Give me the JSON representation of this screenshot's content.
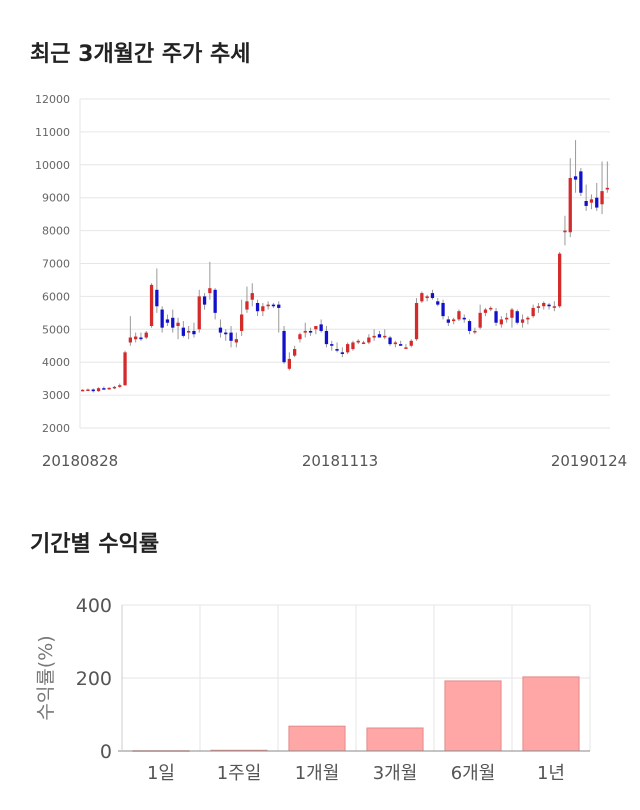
{
  "titles": {
    "price_trend": "최근 3개월간 주가 추세",
    "period_returns": "기간별 수익률"
  },
  "colors": {
    "up": "#d42a2a",
    "down": "#1111cc",
    "wick": "#999999",
    "bar": "#ffa6a6",
    "bar_border": "#e58a8a",
    "grid": "#e6e6e6"
  },
  "chart_data": [
    {
      "type": "candlestick",
      "title": "최근 3개월간 주가 추세",
      "ylim": [
        2000,
        12000
      ],
      "yticks": [
        2000,
        3000,
        4000,
        5000,
        6000,
        7000,
        8000,
        9000,
        10000,
        11000,
        12000
      ],
      "x_labels": [
        "20180828",
        "20181113",
        "20190124"
      ],
      "grid": true,
      "candles": [
        [
          3150,
          3180,
          3120,
          3160
        ],
        [
          3160,
          3200,
          3130,
          3170
        ],
        [
          3170,
          3200,
          3080,
          3120
        ],
        [
          3120,
          3240,
          3100,
          3210
        ],
        [
          3210,
          3260,
          3170,
          3200
        ],
        [
          3200,
          3240,
          3160,
          3220
        ],
        [
          3220,
          3280,
          3180,
          3250
        ],
        [
          3250,
          3350,
          3220,
          3300
        ],
        [
          3300,
          4350,
          3280,
          4300
        ],
        [
          4600,
          5400,
          4500,
          4750
        ],
        [
          4700,
          4900,
          4600,
          4780
        ],
        [
          4750,
          4900,
          4650,
          4700
        ],
        [
          4750,
          4950,
          4700,
          4900
        ],
        [
          5100,
          6400,
          5050,
          6350
        ],
        [
          6200,
          6850,
          5500,
          5700
        ],
        [
          5600,
          5700,
          4900,
          5050
        ],
        [
          5300,
          5450,
          5100,
          5200
        ],
        [
          5350,
          5600,
          4900,
          5050
        ],
        [
          5100,
          5350,
          4700,
          5200
        ],
        [
          5050,
          5250,
          4750,
          4800
        ],
        [
          4900,
          5100,
          4700,
          4950
        ],
        [
          4950,
          5200,
          4750,
          4850
        ],
        [
          5000,
          6200,
          4900,
          6000
        ],
        [
          6000,
          6100,
          5600,
          5750
        ],
        [
          6100,
          7050,
          5900,
          6250
        ],
        [
          6200,
          6250,
          5300,
          5500
        ],
        [
          5050,
          5300,
          4750,
          4900
        ],
        [
          4900,
          5000,
          4650,
          4850
        ],
        [
          4900,
          5100,
          4450,
          4650
        ],
        [
          4600,
          4900,
          4450,
          4700
        ],
        [
          4950,
          5900,
          4800,
          5450
        ],
        [
          5600,
          6300,
          5500,
          5850
        ],
        [
          5900,
          6400,
          5700,
          6100
        ],
        [
          5800,
          5900,
          5400,
          5550
        ],
        [
          5550,
          5800,
          5400,
          5700
        ],
        [
          5700,
          5850,
          5600,
          5750
        ],
        [
          5750,
          5800,
          5650,
          5700
        ],
        [
          5750,
          5850,
          4900,
          5650
        ],
        [
          4950,
          5100,
          3950,
          4000
        ],
        [
          3800,
          4300,
          3750,
          4100
        ],
        [
          4200,
          4500,
          4150,
          4400
        ],
        [
          4700,
          4900,
          4600,
          4850
        ],
        [
          4900,
          5200,
          4750,
          4950
        ],
        [
          4950,
          5050,
          4800,
          4900
        ],
        [
          5000,
          5100,
          4850,
          5100
        ],
        [
          5150,
          5300,
          4900,
          4950
        ],
        [
          4950,
          5100,
          4450,
          4550
        ],
        [
          4550,
          4650,
          4350,
          4500
        ],
        [
          4400,
          4600,
          4300,
          4350
        ],
        [
          4300,
          4450,
          4150,
          4250
        ],
        [
          4300,
          4600,
          4250,
          4550
        ],
        [
          4400,
          4650,
          4350,
          4600
        ],
        [
          4600,
          4700,
          4550,
          4650
        ],
        [
          4600,
          4650,
          4550,
          4600
        ],
        [
          4600,
          4850,
          4550,
          4750
        ],
        [
          4750,
          5000,
          4650,
          4800
        ],
        [
          4850,
          4950,
          4750,
          4750
        ],
        [
          4800,
          5000,
          4700,
          4800
        ],
        [
          4750,
          4800,
          4500,
          4550
        ],
        [
          4550,
          4650,
          4450,
          4600
        ],
        [
          4550,
          4650,
          4500,
          4500
        ],
        [
          4450,
          4550,
          4400,
          4450
        ],
        [
          4500,
          4700,
          4450,
          4650
        ],
        [
          4700,
          5950,
          4650,
          5800
        ],
        [
          5850,
          6150,
          5800,
          6100
        ],
        [
          5950,
          6050,
          5850,
          6000
        ],
        [
          6100,
          6200,
          5900,
          5950
        ],
        [
          5850,
          5950,
          5700,
          5750
        ],
        [
          5800,
          5900,
          5300,
          5400
        ],
        [
          5300,
          5400,
          5100,
          5200
        ],
        [
          5250,
          5350,
          5150,
          5300
        ],
        [
          5300,
          5600,
          5250,
          5550
        ],
        [
          5350,
          5450,
          5200,
          5300
        ],
        [
          5250,
          5300,
          4850,
          4950
        ],
        [
          4950,
          5050,
          4850,
          4950
        ],
        [
          5050,
          5750,
          5000,
          5500
        ],
        [
          5500,
          5650,
          5400,
          5600
        ],
        [
          5650,
          5700,
          5550,
          5650
        ],
        [
          5550,
          5650,
          5100,
          5200
        ],
        [
          5150,
          5400,
          5050,
          5300
        ],
        [
          5300,
          5500,
          5200,
          5350
        ],
        [
          5350,
          5650,
          5050,
          5600
        ],
        [
          5550,
          5600,
          5150,
          5200
        ],
        [
          5200,
          5450,
          5050,
          5300
        ],
        [
          5300,
          5400,
          5150,
          5350
        ],
        [
          5400,
          5750,
          5350,
          5650
        ],
        [
          5650,
          5800,
          5500,
          5700
        ],
        [
          5700,
          5850,
          5600,
          5800
        ],
        [
          5750,
          5800,
          5600,
          5700
        ],
        [
          5700,
          5850,
          5550,
          5700
        ],
        [
          5700,
          7350,
          5650,
          7300
        ],
        [
          7950,
          8450,
          7550,
          8000
        ],
        [
          7950,
          10200,
          7800,
          9600
        ],
        [
          9650,
          10750,
          9150,
          9550
        ],
        [
          9800,
          9900,
          9050,
          9150
        ],
        [
          8900,
          9400,
          8600,
          8750
        ],
        [
          8850,
          9100,
          8650,
          8950
        ],
        [
          9000,
          9450,
          8600,
          8700
        ],
        [
          8800,
          10100,
          8500,
          9200
        ],
        [
          9250,
          10100,
          9150,
          9300
        ]
      ]
    },
    {
      "type": "bar",
      "title": "기간별 수익률",
      "categories": [
        "1일",
        "1주일",
        "1개월",
        "3개월",
        "6개월",
        "1년"
      ],
      "values": [
        0.8,
        2,
        68,
        63,
        192,
        203
      ],
      "ylabel": "수익률(%)",
      "ylim": [
        0,
        400
      ],
      "yticks": [
        0,
        200,
        400
      ],
      "grid": true
    }
  ]
}
